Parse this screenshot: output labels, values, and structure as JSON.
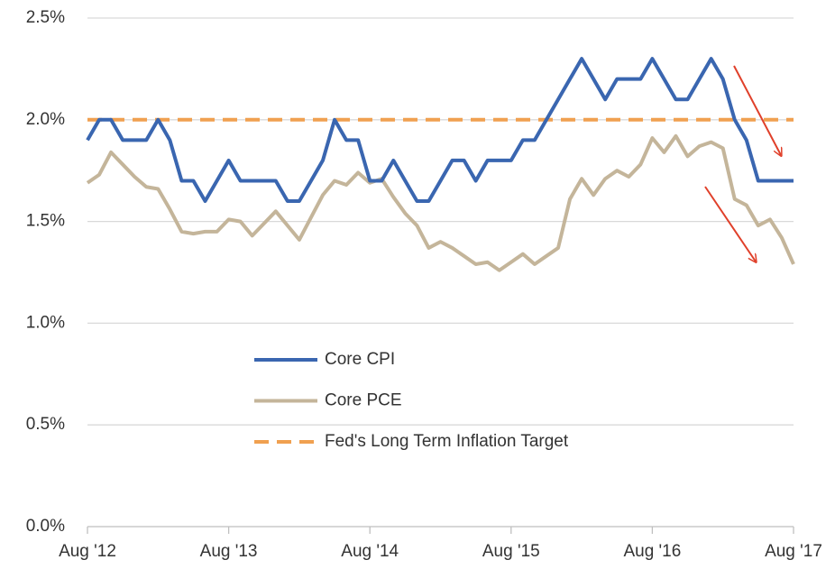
{
  "chart_data": {
    "type": "line",
    "categories": [
      "Aug '12",
      null,
      null,
      null,
      null,
      null,
      null,
      null,
      null,
      null,
      null,
      null,
      "Aug '13",
      null,
      null,
      null,
      null,
      null,
      null,
      null,
      null,
      null,
      null,
      null,
      "Aug '14",
      null,
      null,
      null,
      null,
      null,
      null,
      null,
      null,
      null,
      null,
      null,
      "Aug '15",
      null,
      null,
      null,
      null,
      null,
      null,
      null,
      null,
      null,
      null,
      null,
      "Aug '16",
      null,
      null,
      null,
      null,
      null,
      null,
      null,
      null,
      null,
      null,
      null,
      "Aug '17"
    ],
    "series": [
      {
        "name": "Core CPI",
        "color": "#3a66b0",
        "dashed": false,
        "values": [
          1.9,
          2.0,
          2.0,
          1.9,
          1.9,
          1.9,
          2.0,
          1.9,
          1.7,
          1.7,
          1.6,
          1.7,
          1.8,
          1.7,
          1.7,
          1.7,
          1.7,
          1.6,
          1.6,
          1.7,
          1.8,
          2.0,
          1.9,
          1.9,
          1.7,
          1.7,
          1.8,
          1.7,
          1.6,
          1.6,
          1.7,
          1.8,
          1.8,
          1.7,
          1.8,
          1.8,
          1.8,
          1.9,
          1.9,
          2.0,
          2.1,
          2.2,
          2.3,
          2.2,
          2.1,
          2.2,
          2.2,
          2.2,
          2.3,
          2.2,
          2.1,
          2.1,
          2.2,
          2.3,
          2.2,
          2.0,
          1.9,
          1.7,
          1.7,
          1.7,
          1.7
        ]
      },
      {
        "name": "Core PCE",
        "color": "#c4b59a",
        "dashed": false,
        "values": [
          1.69,
          1.73,
          1.84,
          1.78,
          1.72,
          1.67,
          1.66,
          1.56,
          1.45,
          1.44,
          1.45,
          1.45,
          1.51,
          1.5,
          1.43,
          1.49,
          1.55,
          1.48,
          1.41,
          1.52,
          1.63,
          1.7,
          1.68,
          1.74,
          1.69,
          1.71,
          1.62,
          1.54,
          1.48,
          1.37,
          1.4,
          1.37,
          1.33,
          1.29,
          1.3,
          1.26,
          1.3,
          1.34,
          1.29,
          1.33,
          1.37,
          1.61,
          1.71,
          1.63,
          1.71,
          1.75,
          1.72,
          1.78,
          1.91,
          1.84,
          1.92,
          1.82,
          1.87,
          1.89,
          1.86,
          1.61,
          1.58,
          1.48,
          1.51,
          1.42,
          1.29
        ]
      },
      {
        "name": "Fed's Long Term Inflation Target",
        "color": "#f0a050",
        "dashed": true,
        "values": [
          2,
          2,
          2,
          2,
          2,
          2,
          2,
          2,
          2,
          2,
          2,
          2,
          2,
          2,
          2,
          2,
          2,
          2,
          2,
          2,
          2,
          2,
          2,
          2,
          2,
          2,
          2,
          2,
          2,
          2,
          2,
          2,
          2,
          2,
          2,
          2,
          2,
          2,
          2,
          2,
          2,
          2,
          2,
          2,
          2,
          2,
          2,
          2,
          2,
          2,
          2,
          2,
          2,
          2,
          2,
          2,
          2,
          2,
          2,
          2,
          2
        ]
      }
    ],
    "ylim": [
      0,
      2.5
    ],
    "yticks": [
      {
        "value": 0,
        "label": "0.0%"
      },
      {
        "value": 0.5,
        "label": "0.5%"
      },
      {
        "value": 1,
        "label": "1.0%"
      },
      {
        "value": 1.5,
        "label": "1.5%"
      },
      {
        "value": 2,
        "label": "2.0%"
      },
      {
        "value": 2.5,
        "label": "2.5%"
      }
    ],
    "grid": true
  }
}
